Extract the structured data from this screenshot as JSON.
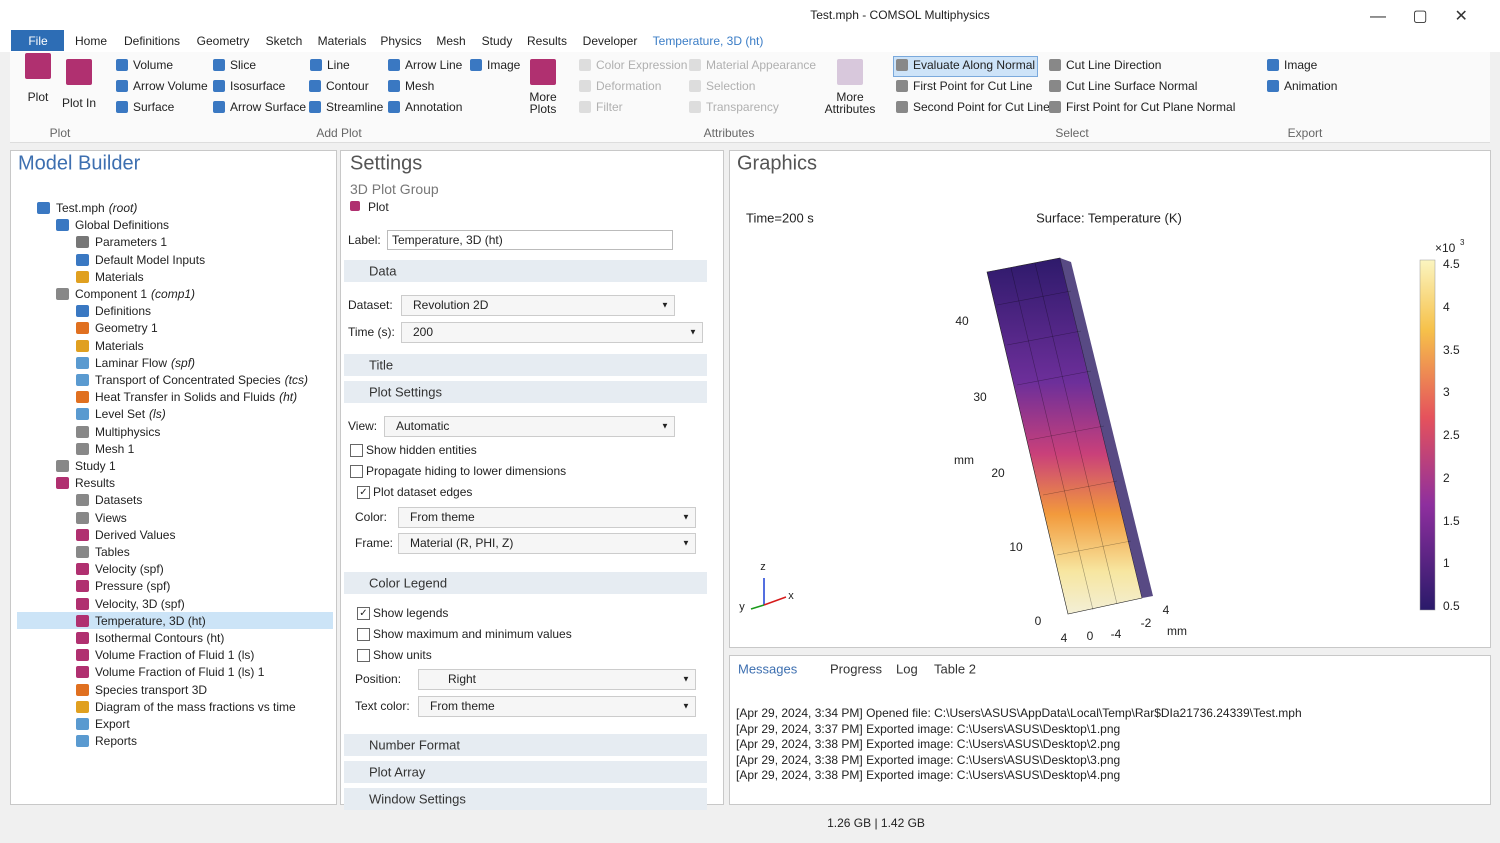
{
  "window": {
    "title": "Test.mph - COMSOL Multiphysics"
  },
  "menu": [
    "File",
    "Home",
    "Definitions",
    "Geometry",
    "Sketch",
    "Materials",
    "Physics",
    "Mesh",
    "Study",
    "Results",
    "Developer",
    "Temperature, 3D (ht)"
  ],
  "ribbon": {
    "groups": [
      {
        "label": "Plot",
        "items": [
          "Plot",
          "Plot In"
        ]
      },
      {
        "label": "Add Plot",
        "items": [
          "Volume",
          "Slice",
          "Line",
          "Arrow Line",
          "Image",
          "Arrow Volume",
          "Isosurface",
          "Contour",
          "Mesh",
          "Surface",
          "Arrow Surface",
          "Streamline",
          "Annotation",
          "More Plots"
        ]
      },
      {
        "label": "Attributes",
        "items": [
          "Color Expression",
          "Material Appearance",
          "Deformation",
          "Selection",
          "Filter",
          "Transparency",
          "More Attributes"
        ]
      },
      {
        "label": "Select",
        "items": [
          "Evaluate Along Normal",
          "Cut Line Direction",
          "First Point for Cut Line",
          "Cut Line Surface Normal",
          "Second Point for Cut Line",
          "First Point for Cut Plane Normal"
        ]
      },
      {
        "label": "Export",
        "items": [
          "Image",
          "Animation"
        ]
      }
    ]
  },
  "model_builder": {
    "title": "Model Builder",
    "tree": [
      {
        "label": "Test.mph",
        "tag": "(root)"
      },
      {
        "label": "Global Definitions"
      },
      {
        "label": "Parameters 1"
      },
      {
        "label": "Default Model Inputs"
      },
      {
        "label": "Materials"
      },
      {
        "label": "Component 1",
        "tag": "(comp1)"
      },
      {
        "label": "Definitions"
      },
      {
        "label": "Geometry 1"
      },
      {
        "label": "Materials"
      },
      {
        "label": "Laminar Flow",
        "tag": "(spf)"
      },
      {
        "label": "Transport of Concentrated Species",
        "tag": "(tcs)"
      },
      {
        "label": "Heat Transfer in Solids and Fluids",
        "tag": "(ht)"
      },
      {
        "label": "Level Set",
        "tag": "(ls)"
      },
      {
        "label": "Multiphysics"
      },
      {
        "label": "Mesh 1"
      },
      {
        "label": "Study 1"
      },
      {
        "label": "Results"
      },
      {
        "label": "Datasets"
      },
      {
        "label": "Views"
      },
      {
        "label": "Derived Values"
      },
      {
        "label": "Tables"
      },
      {
        "label": "Velocity (spf)"
      },
      {
        "label": "Pressure (spf)"
      },
      {
        "label": "Velocity, 3D (spf)"
      },
      {
        "label": "Temperature, 3D (ht)"
      },
      {
        "label": "Isothermal Contours (ht)"
      },
      {
        "label": "Volume Fraction of Fluid 1 (ls)"
      },
      {
        "label": "Volume Fraction of Fluid 1 (ls) 1"
      },
      {
        "label": "Species transport 3D"
      },
      {
        "label": "Diagram of the mass fractions vs time"
      },
      {
        "label": "Export"
      },
      {
        "label": "Reports"
      }
    ]
  },
  "settings": {
    "title": "Settings",
    "subtitle": "3D Plot Group",
    "plot_button": "Plot",
    "label_field": {
      "label": "Label:",
      "value": "Temperature, 3D (ht)"
    },
    "sections": [
      "Data",
      "Title",
      "Plot Settings",
      "Color Legend",
      "Number Format",
      "Plot Array",
      "Window Settings"
    ],
    "fields": [
      {
        "label": "Dataset:",
        "value": "Revolution 2D"
      },
      {
        "label": "Time (s):",
        "value": "200"
      },
      {
        "label": "View:",
        "value": "Automatic"
      },
      {
        "label": "Color:",
        "value": "From theme"
      },
      {
        "label": "Frame:",
        "value": "Material  (R, PHI, Z)"
      },
      {
        "label": "Position:",
        "value": "Right"
      },
      {
        "label": "Text color:",
        "value": "From theme"
      }
    ],
    "checkboxes": [
      {
        "label": "Show hidden entities",
        "checked": false
      },
      {
        "label": "Propagate hiding to lower dimensions",
        "checked": false
      },
      {
        "label": "Plot dataset edges",
        "checked": true
      },
      {
        "label": "Show legends",
        "checked": true
      },
      {
        "label": "Show maximum and minimum values",
        "checked": false
      },
      {
        "label": "Show units",
        "checked": false
      }
    ]
  },
  "graphics": {
    "title": "Graphics",
    "time_label": "Time=200 s",
    "plot_title": "Surface: Temperature (K)",
    "colorbar": {
      "multiplier": "×10",
      "exponent": "3",
      "ticks": [
        "4.5",
        "4",
        "3.5",
        "3",
        "2.5",
        "2",
        "1.5",
        "1",
        "0.5"
      ]
    },
    "axis_labels": [
      "40",
      "30",
      "mm",
      "20",
      "10",
      "0",
      "4",
      "0",
      "-4",
      "-2",
      "4",
      "mm"
    ],
    "triad": [
      "z",
      "y",
      "x"
    ]
  },
  "messages": {
    "tabs": [
      "Messages",
      "Progress",
      "Log",
      "Table 2"
    ],
    "lines": [
      "[Apr 29, 2024, 3:34 PM] Opened file: C:\\Users\\ASUS\\AppData\\Local\\Temp\\Rar$DIa21736.24339\\Test.mph",
      "[Apr 29, 2024, 3:37 PM] Exported image: C:\\Users\\ASUS\\Desktop\\1.png",
      "[Apr 29, 2024, 3:38 PM] Exported image: C:\\Users\\ASUS\\Desktop\\2.png",
      "[Apr 29, 2024, 3:38 PM] Exported image: C:\\Users\\ASUS\\Desktop\\3.png",
      "[Apr 29, 2024, 3:38 PM] Exported image: C:\\Users\\ASUS\\Desktop\\4.png"
    ]
  },
  "status": "1.26 GB | 1.42 GB"
}
